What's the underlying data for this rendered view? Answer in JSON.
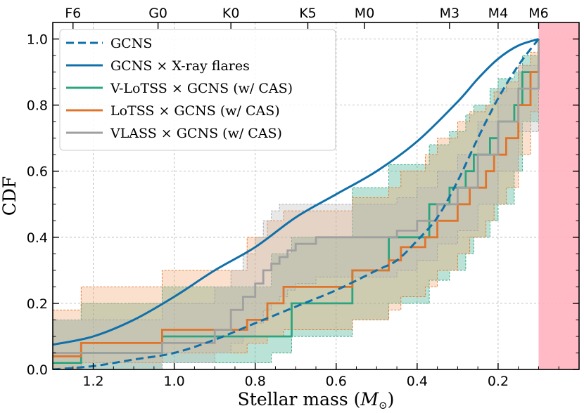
{
  "chart_data": {
    "type": "line",
    "title": "",
    "xlabel": "Stellar mass (",
    "xlabel_symbol": "M",
    "xlabel_sub": "⊙",
    "xlabel_close": ")",
    "ylabel": "CDF",
    "xlim": [
      1.3,
      0.0
    ],
    "ylim": [
      0.0,
      1.05
    ],
    "x_reversed": true,
    "grid": true,
    "legend_position": "top-left",
    "x_ticks": [
      1.2,
      1.0,
      0.8,
      0.6,
      0.4,
      0.2
    ],
    "x_tick_labels": [
      "1.2",
      "1.0",
      "0.8",
      "0.6",
      "0.4",
      "0.2"
    ],
    "y_ticks": [
      0.0,
      0.2,
      0.4,
      0.6,
      0.8,
      1.0
    ],
    "y_tick_labels": [
      "0.0",
      "0.2",
      "0.4",
      "0.6",
      "0.8",
      "1.0"
    ],
    "top_axis": [
      {
        "label": "F6",
        "x": 1.25
      },
      {
        "label": "G0",
        "x": 1.04
      },
      {
        "label": "K0",
        "x": 0.86
      },
      {
        "label": "K5",
        "x": 0.67
      },
      {
        "label": "M0",
        "x": 0.53
      },
      {
        "label": "M3",
        "x": 0.32
      },
      {
        "label": "M4",
        "x": 0.2
      },
      {
        "label": "M6",
        "x": 0.1
      }
    ],
    "shaded_region": {
      "from": 0.1,
      "to": 0.0,
      "color": "#ffb3bf"
    },
    "series": [
      {
        "name": "GCNS",
        "style": "dashed",
        "color": "#1170aa",
        "x": [
          1.3,
          1.2,
          1.1,
          1.0,
          0.9,
          0.8,
          0.7,
          0.6,
          0.5,
          0.45,
          0.4,
          0.35,
          0.3,
          0.25,
          0.2,
          0.15,
          0.1
        ],
        "y": [
          0.0,
          0.01,
          0.03,
          0.05,
          0.09,
          0.14,
          0.19,
          0.24,
          0.3,
          0.33,
          0.39,
          0.46,
          0.57,
          0.7,
          0.82,
          0.92,
          1.0
        ]
      },
      {
        "name": "GCNS × X-ray flares",
        "style": "solid",
        "color": "#1170aa",
        "x": [
          1.3,
          1.2,
          1.1,
          1.0,
          0.9,
          0.8,
          0.7,
          0.6,
          0.5,
          0.4,
          0.3,
          0.25,
          0.2,
          0.15,
          0.1
        ],
        "y": [
          0.075,
          0.1,
          0.15,
          0.22,
          0.3,
          0.37,
          0.46,
          0.53,
          0.6,
          0.69,
          0.81,
          0.88,
          0.94,
          0.98,
          1.0
        ]
      },
      {
        "name": "V-LoTSS × GCNS (w/ CAS)",
        "style": "step",
        "color": "#2aa57f",
        "fill": "#2aa57f",
        "x": [
          1.3,
          1.23,
          1.03,
          0.76,
          0.71,
          0.56,
          0.47,
          0.37,
          0.32,
          0.28,
          0.26,
          0.22,
          0.2,
          0.16,
          0.14,
          0.1
        ],
        "y": [
          0.02,
          0.05,
          0.1,
          0.1,
          0.2,
          0.3,
          0.4,
          0.5,
          0.55,
          0.6,
          0.65,
          0.7,
          0.75,
          0.8,
          0.9,
          1.0
        ],
        "upper": [
          0.15,
          0.2,
          0.25,
          0.35,
          0.4,
          0.55,
          0.62,
          0.68,
          0.72,
          0.77,
          0.8,
          0.85,
          0.88,
          0.9,
          0.95,
          1.0
        ],
        "lower": [
          0.0,
          0.0,
          0.02,
          0.05,
          0.1,
          0.15,
          0.2,
          0.27,
          0.3,
          0.35,
          0.4,
          0.45,
          0.5,
          0.6,
          0.75,
          1.0
        ]
      },
      {
        "name": "LoTSS × GCNS (w/ CAS)",
        "style": "step",
        "color": "#e0742b",
        "fill": "#f29e62",
        "x": [
          1.3,
          1.23,
          1.03,
          0.82,
          0.77,
          0.73,
          0.56,
          0.47,
          0.44,
          0.38,
          0.35,
          0.3,
          0.27,
          0.23,
          0.21,
          0.18,
          0.15,
          0.12,
          0.1
        ],
        "y": [
          0.04,
          0.08,
          0.12,
          0.15,
          0.2,
          0.25,
          0.3,
          0.33,
          0.37,
          0.4,
          0.45,
          0.5,
          0.55,
          0.6,
          0.65,
          0.7,
          0.8,
          0.9,
          1.0
        ],
        "upper": [
          0.18,
          0.25,
          0.3,
          0.4,
          0.45,
          0.48,
          0.52,
          0.55,
          0.6,
          0.65,
          0.7,
          0.75,
          0.78,
          0.8,
          0.84,
          0.87,
          0.92,
          0.96,
          1.0
        ],
        "lower": [
          0.0,
          0.02,
          0.05,
          0.08,
          0.1,
          0.12,
          0.15,
          0.18,
          0.22,
          0.25,
          0.3,
          0.35,
          0.4,
          0.45,
          0.5,
          0.55,
          0.65,
          0.78,
          1.0
        ]
      },
      {
        "name": "VLASS × GCNS (w/ CAS)",
        "style": "step",
        "color": "#a0a0a0",
        "fill": "#b8b8b8",
        "x": [
          1.3,
          1.03,
          0.9,
          0.86,
          0.83,
          0.8,
          0.78,
          0.76,
          0.74,
          0.72,
          0.7,
          0.65,
          0.5,
          0.45,
          0.4,
          0.35,
          0.3,
          0.25,
          0.2,
          0.15,
          0.1
        ],
        "y": [
          0.05,
          0.08,
          0.12,
          0.18,
          0.22,
          0.26,
          0.3,
          0.32,
          0.34,
          0.36,
          0.38,
          0.4,
          0.4,
          0.42,
          0.45,
          0.5,
          0.55,
          0.65,
          0.75,
          0.85,
          1.0
        ],
        "upper": [
          0.15,
          0.2,
          0.25,
          0.3,
          0.35,
          0.4,
          0.45,
          0.48,
          0.5,
          0.5,
          0.5,
          0.5,
          0.5,
          0.52,
          0.55,
          0.6,
          0.65,
          0.75,
          0.85,
          0.92,
          1.0
        ],
        "lower": [
          0.0,
          0.02,
          0.05,
          0.08,
          0.1,
          0.14,
          0.18,
          0.2,
          0.22,
          0.24,
          0.26,
          0.28,
          0.28,
          0.3,
          0.33,
          0.38,
          0.42,
          0.5,
          0.6,
          0.72,
          1.0
        ]
      }
    ]
  }
}
